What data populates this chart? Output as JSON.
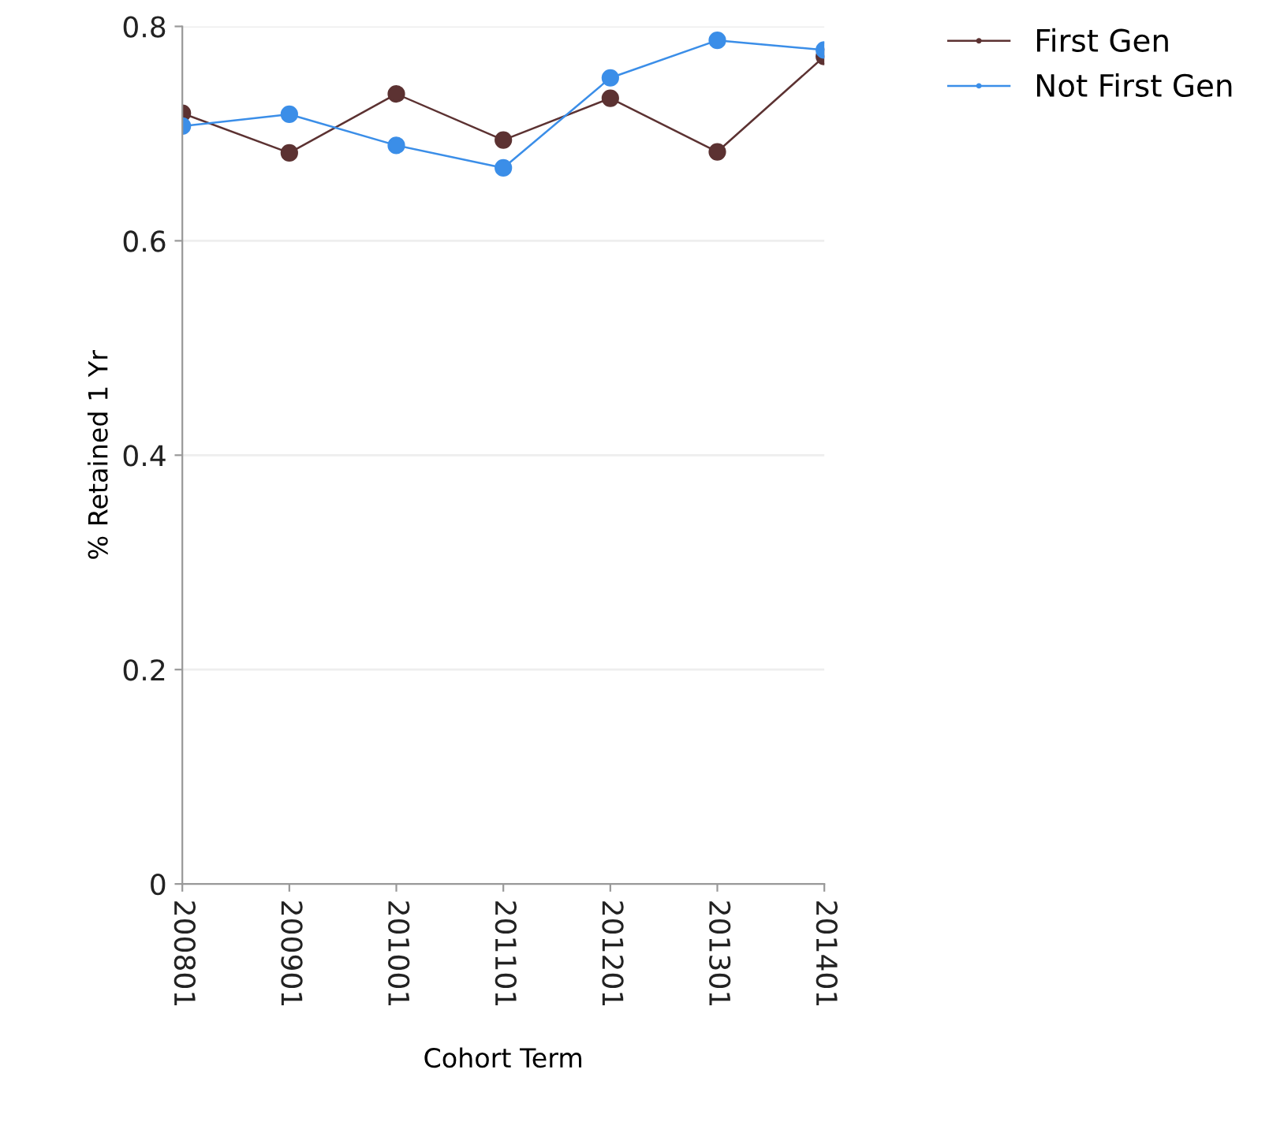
{
  "chart_data": {
    "type": "line",
    "xlabel": "Cohort Term",
    "ylabel": "% Retained 1 Yr",
    "categories": [
      "200801",
      "200901",
      "201001",
      "201101",
      "201201",
      "201301",
      "201401"
    ],
    "series": [
      {
        "name": "First Gen",
        "color": "#5c3232",
        "values": [
          0.719,
          0.682,
          0.737,
          0.694,
          0.733,
          0.683,
          0.772
        ]
      },
      {
        "name": "Not First Gen",
        "color": "#3b8ee8",
        "values": [
          0.707,
          0.718,
          0.689,
          0.668,
          0.752,
          0.787,
          0.778
        ]
      }
    ],
    "ylim": [
      0,
      0.8
    ],
    "yticks": [
      0,
      0.2,
      0.4,
      0.6,
      0.8
    ],
    "grid": "y",
    "legend": "top right",
    "marker": "circle",
    "line_style": "solid"
  }
}
